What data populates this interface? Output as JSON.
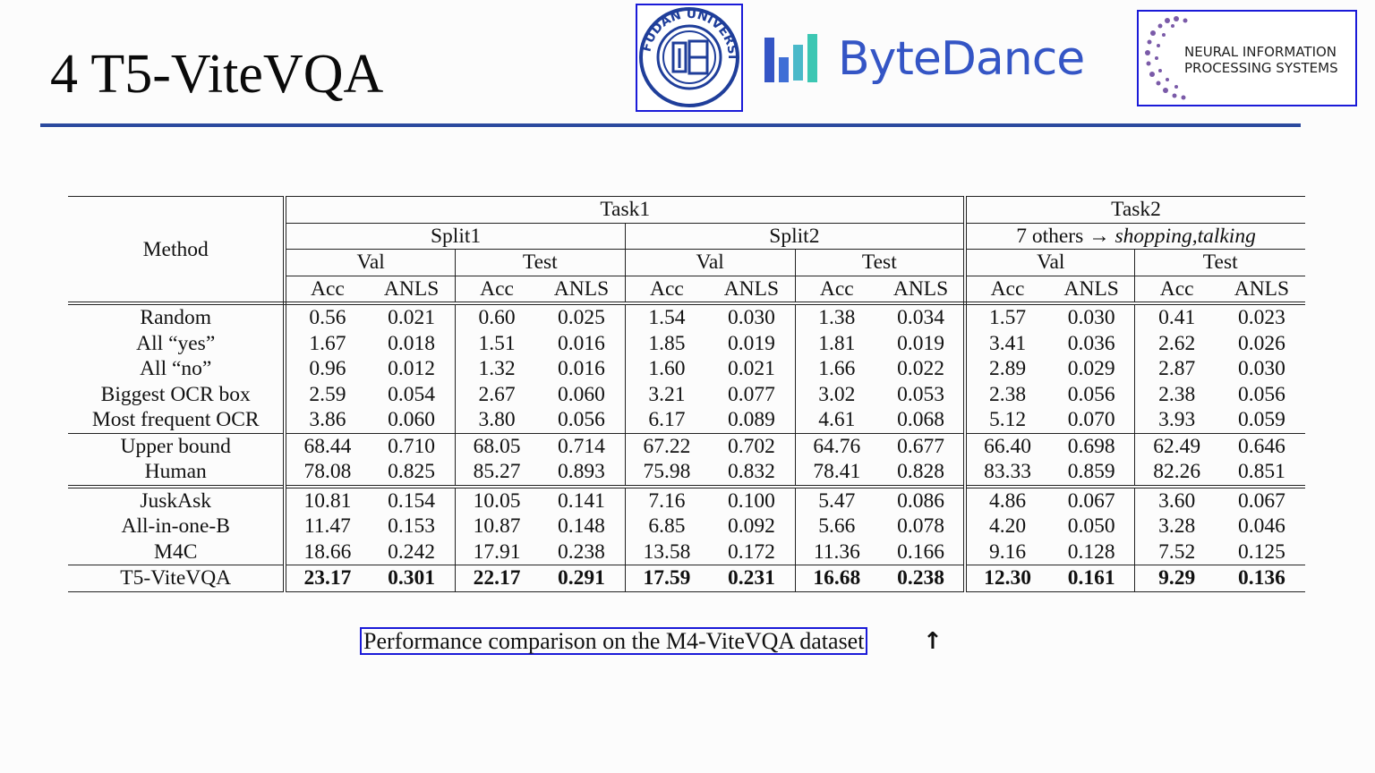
{
  "slide": {
    "title": "4 T5-ViteVQA",
    "caption": "Performance comparison on the M4-ViteVQA dataset",
    "cursor_icon": "up-arrow-icon",
    "accent_color": "#2b4a9e"
  },
  "logos": {
    "fudan": "FUDAN UNIVERSITY 1905",
    "bytedance": "ByteDance",
    "neurips_line1": "NEURAL INFORMATION",
    "neurips_line2": "PROCESSING SYSTEMS"
  },
  "table": {
    "method_header": "Method",
    "task1": "Task1",
    "task2": "Task2",
    "split1": "Split1",
    "split2": "Split2",
    "task2_split_prefix": "7 others → ",
    "task2_split_emph": "shopping,talking",
    "val": "Val",
    "test": "Test",
    "acc": "Acc",
    "anls": "ANLS",
    "groups": [
      {
        "rows": [
          {
            "method": "Random",
            "values": [
              "0.56",
              "0.021",
              "0.60",
              "0.025",
              "1.54",
              "0.030",
              "1.38",
              "0.034",
              "1.57",
              "0.030",
              "0.41",
              "0.023"
            ]
          },
          {
            "method": "All “yes”",
            "values": [
              "1.67",
              "0.018",
              "1.51",
              "0.016",
              "1.85",
              "0.019",
              "1.81",
              "0.019",
              "3.41",
              "0.036",
              "2.62",
              "0.026"
            ]
          },
          {
            "method": "All “no”",
            "values": [
              "0.96",
              "0.012",
              "1.32",
              "0.016",
              "1.60",
              "0.021",
              "1.66",
              "0.022",
              "2.89",
              "0.029",
              "2.87",
              "0.030"
            ]
          },
          {
            "method": "Biggest OCR box",
            "values": [
              "2.59",
              "0.054",
              "2.67",
              "0.060",
              "3.21",
              "0.077",
              "3.02",
              "0.053",
              "2.38",
              "0.056",
              "2.38",
              "0.056"
            ]
          },
          {
            "method": "Most frequent OCR",
            "values": [
              "3.86",
              "0.060",
              "3.80",
              "0.056",
              "6.17",
              "0.089",
              "4.61",
              "0.068",
              "5.12",
              "0.070",
              "3.93",
              "0.059"
            ]
          }
        ]
      },
      {
        "rows": [
          {
            "method": "Upper bound",
            "values": [
              "68.44",
              "0.710",
              "68.05",
              "0.714",
              "67.22",
              "0.702",
              "64.76",
              "0.677",
              "66.40",
              "0.698",
              "62.49",
              "0.646"
            ]
          },
          {
            "method": "Human",
            "values": [
              "78.08",
              "0.825",
              "85.27",
              "0.893",
              "75.98",
              "0.832",
              "78.41",
              "0.828",
              "83.33",
              "0.859",
              "82.26",
              "0.851"
            ]
          }
        ]
      },
      {
        "rows": [
          {
            "method": "JuskAsk",
            "values": [
              "10.81",
              "0.154",
              "10.05",
              "0.141",
              "7.16",
              "0.100",
              "5.47",
              "0.086",
              "4.86",
              "0.067",
              "3.60",
              "0.067"
            ]
          },
          {
            "method": "All-in-one-B",
            "values": [
              "11.47",
              "0.153",
              "10.87",
              "0.148",
              "6.85",
              "0.092",
              "5.66",
              "0.078",
              "4.20",
              "0.050",
              "3.28",
              "0.046"
            ]
          },
          {
            "method": "M4C",
            "values": [
              "18.66",
              "0.242",
              "17.91",
              "0.238",
              "13.58",
              "0.172",
              "11.36",
              "0.166",
              "9.16",
              "0.128",
              "7.52",
              "0.125"
            ]
          }
        ]
      },
      {
        "bold": true,
        "rows": [
          {
            "method": "T5-ViteVQA",
            "values": [
              "23.17",
              "0.301",
              "22.17",
              "0.291",
              "17.59",
              "0.231",
              "16.68",
              "0.238",
              "12.30",
              "0.161",
              "9.29",
              "0.136"
            ]
          }
        ]
      }
    ]
  }
}
